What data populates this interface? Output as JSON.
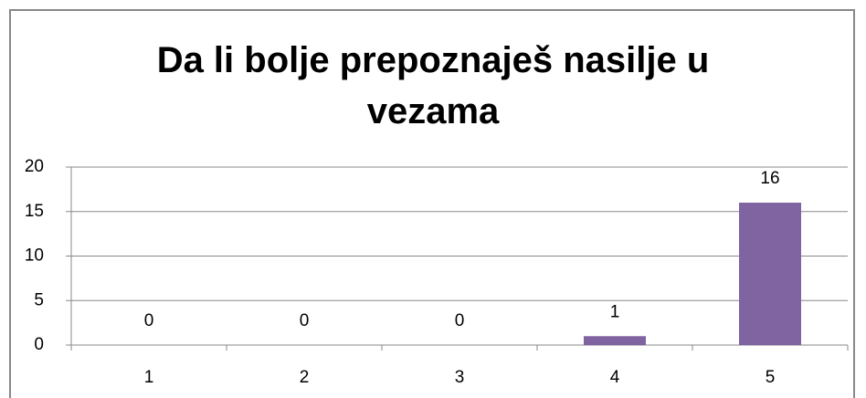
{
  "chart_data": {
    "type": "bar",
    "title": "Da li bolje prepoznaješ nasilje u vezama",
    "categories": [
      "1",
      "2",
      "3",
      "4",
      "5"
    ],
    "values": [
      0,
      0,
      0,
      1,
      16
    ],
    "color": "#8064a2",
    "ylim": [
      0,
      20
    ],
    "yticks": [
      0,
      5,
      10,
      15,
      20
    ],
    "grid": true
  }
}
